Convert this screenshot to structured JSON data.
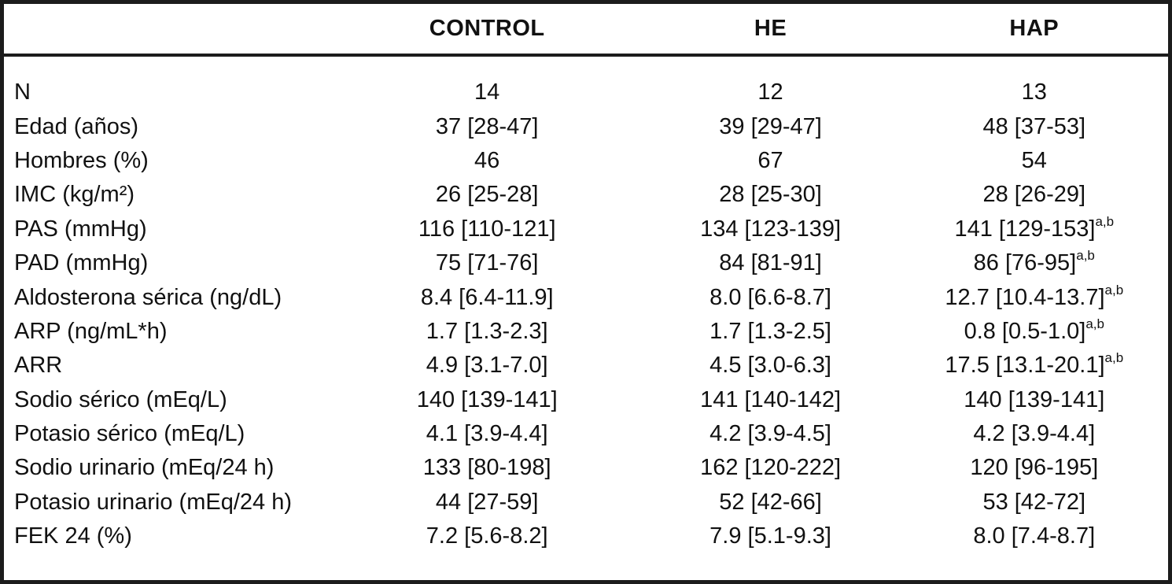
{
  "table": {
    "columns": {
      "label": "",
      "control": "CONTROL",
      "he": "HE",
      "hap": "HAP"
    },
    "rows": [
      {
        "label": "N",
        "control": "14",
        "he": "12",
        "hap": "13",
        "hap_sup": ""
      },
      {
        "label": "Edad (años)",
        "control": "37 [28-47]",
        "he": "39 [29-47]",
        "hap": "48 [37-53]",
        "hap_sup": ""
      },
      {
        "label": "Hombres (%)",
        "control": "46",
        "he": "67",
        "hap": "54",
        "hap_sup": ""
      },
      {
        "label": "IMC (kg/m²)",
        "control": "26 [25-28]",
        "he": "28 [25-30]",
        "hap": "28 [26-29]",
        "hap_sup": ""
      },
      {
        "label": "PAS (mmHg)",
        "control": "116 [110-121]",
        "he": "134 [123-139]",
        "hap": "141 [129-153]",
        "hap_sup": "a,b"
      },
      {
        "label": "PAD (mmHg)",
        "control": "75 [71-76]",
        "he": "84 [81-91]",
        "hap": "86 [76-95]",
        "hap_sup": "a,b"
      },
      {
        "label": "Aldosterona sérica (ng/dL)",
        "control": "8.4 [6.4-11.9]",
        "he": "8.0 [6.6-8.7]",
        "hap": "12.7 [10.4-13.7]",
        "hap_sup": "a,b"
      },
      {
        "label": "ARP (ng/mL*h)",
        "control": "1.7 [1.3-2.3]",
        "he": "1.7 [1.3-2.5]",
        "hap": "0.8 [0.5-1.0]",
        "hap_sup": "a,b"
      },
      {
        "label": "ARR",
        "control": "4.9 [3.1-7.0]",
        "he": "4.5 [3.0-6.3]",
        "hap": "17.5 [13.1-20.1]",
        "hap_sup": "a,b"
      },
      {
        "label": "Sodio sérico (mEq/L)",
        "control": "140 [139-141]",
        "he": "141 [140-142]",
        "hap": "140 [139-141]",
        "hap_sup": ""
      },
      {
        "label": "Potasio sérico (mEq/L)",
        "control": "4.1 [3.9-4.4]",
        "he": "4.2 [3.9-4.5]",
        "hap": "4.2 [3.9-4.4]",
        "hap_sup": ""
      },
      {
        "label": "Sodio urinario (mEq/24 h)",
        "control": "133 [80-198]",
        "he": "162 [120-222]",
        "hap": "120 [96-195]",
        "hap_sup": ""
      },
      {
        "label": "Potasio urinario (mEq/24 h)",
        "control": "44 [27-59]",
        "he": "52 [42-66]",
        "hap": "53 [42-72]",
        "hap_sup": ""
      },
      {
        "label": "FEK 24 (%)",
        "control": "7.2 [5.6-8.2]",
        "he": "7.9 [5.1-9.3]",
        "hap": "8.0 [7.4-8.7]",
        "hap_sup": ""
      }
    ]
  }
}
